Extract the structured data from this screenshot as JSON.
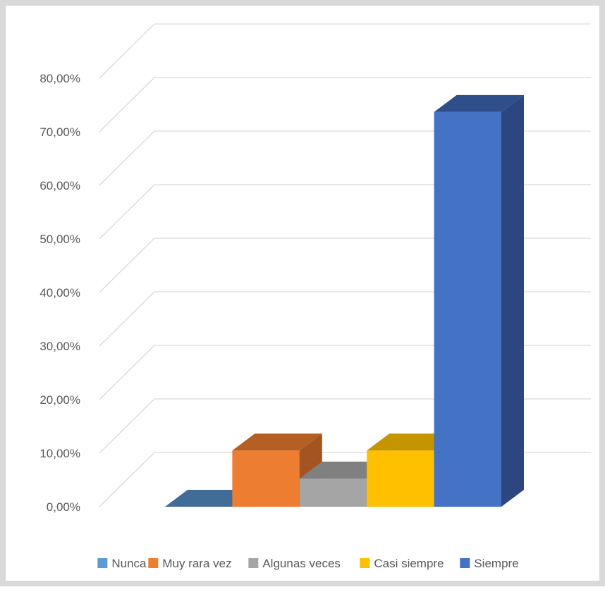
{
  "chart_data": {
    "type": "bar",
    "title": "",
    "xlabel": "",
    "ylabel": "",
    "categories": [
      "Nunca",
      "Muy rara vez",
      "Algunas veces",
      "Casi siempre",
      "Siempre"
    ],
    "values": [
      0,
      10.5,
      5.26,
      10.5,
      73.7
    ],
    "y_ticks": [
      "0,00%",
      "10,00%",
      "20,00%",
      "30,00%",
      "40,00%",
      "50,00%",
      "60,00%",
      "70,00%",
      "80,00%"
    ],
    "ylim": [
      0,
      80
    ],
    "grid": true,
    "legend_position": "bottom",
    "three_d": true,
    "colors": {
      "front": [
        "#4a7aab",
        "#ed7d31",
        "#a5a5a5",
        "#ffc000",
        "#4472c4"
      ],
      "top": [
        "#426c98",
        "#b55f24",
        "#808080",
        "#c59500",
        "#2f4f8a"
      ],
      "side": [
        "#355a80",
        "#a35420",
        "#6f6f6f",
        "#ae8400",
        "#2b4680"
      ],
      "legend": [
        "#5b9bd5",
        "#ed7d31",
        "#a5a5a5",
        "#ffc000",
        "#4472c4"
      ],
      "grid": "#d9d9d9"
    }
  }
}
